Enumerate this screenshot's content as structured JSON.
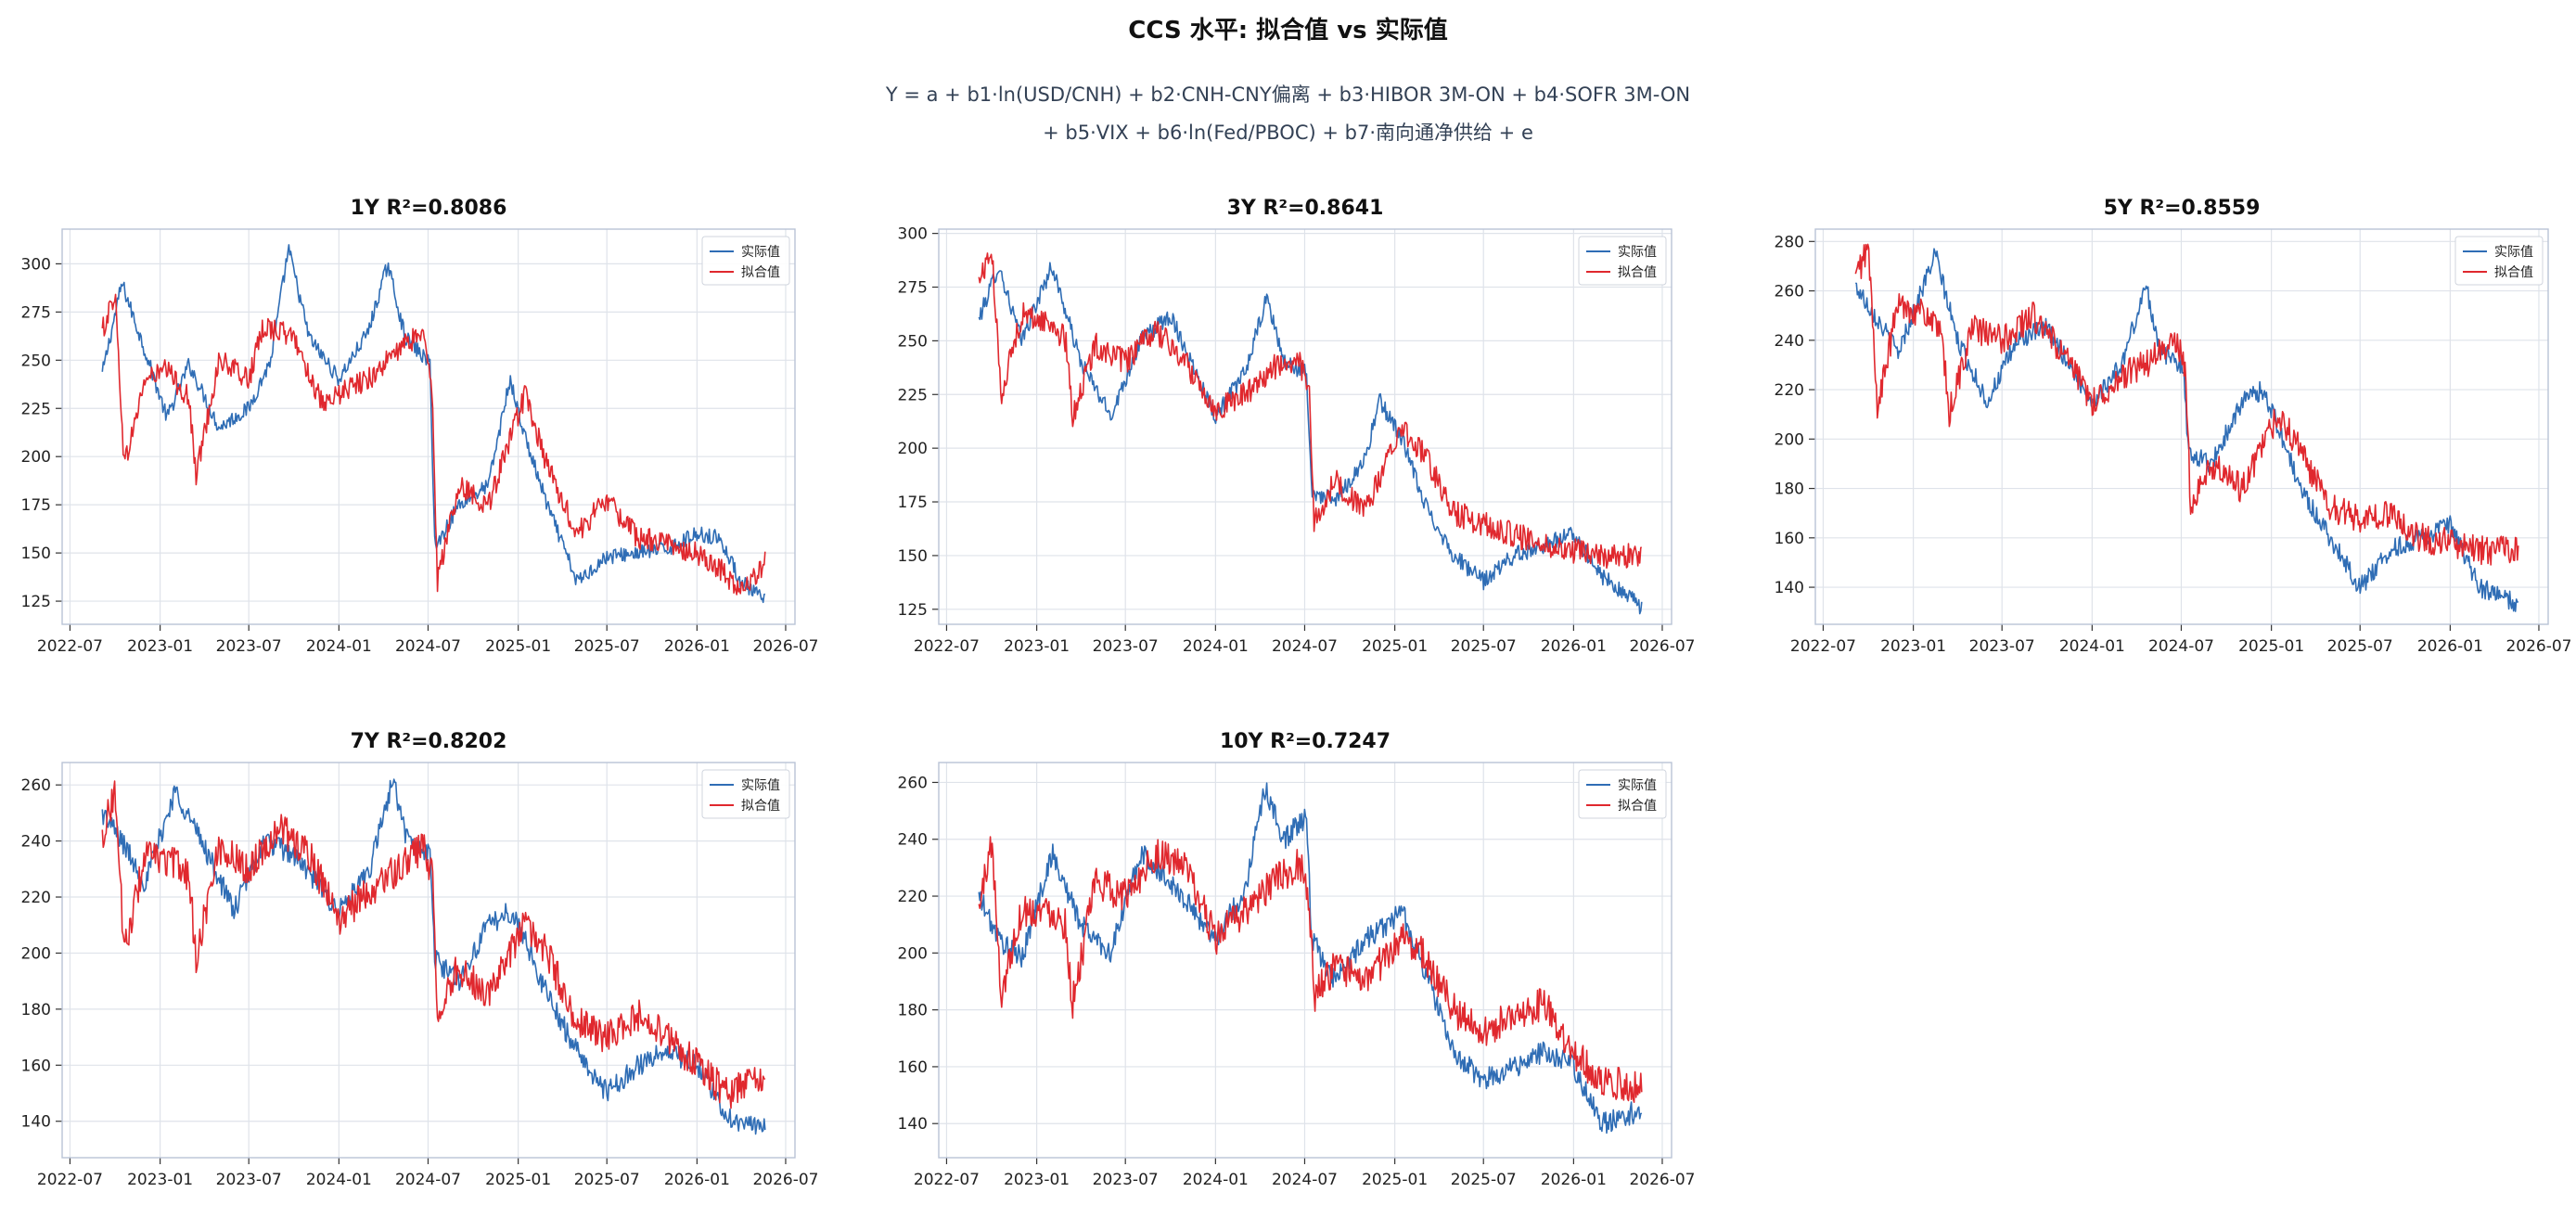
{
  "title": "CCS 水平: 拟合值 vs 实际值",
  "formula_line1": "Y = a + b1·ln(USD/CNH) + b2·CNH-CNY偏离 + b3·HIBOR 3M-ON + b4·SOFR 3M-ON",
  "formula_line2": "+ b5·VIX + b6·ln(Fed/PBOC) + b7·南向通净供给 + e",
  "colors": {
    "actual": "#2f6db5",
    "fitted": "#e0282e",
    "grid": "#dfe3ea",
    "frame": "#b9c3d6"
  },
  "chart_data": [
    {
      "type": "line",
      "title": "1Y  R²=0.8086",
      "xticks": [
        "2022-07",
        "2023-01",
        "2023-07",
        "2024-01",
        "2024-07",
        "2025-01",
        "2025-07",
        "2026-01",
        "2026-07"
      ],
      "xlim": [
        "2022-06-15",
        "2026-07-20"
      ],
      "yticks": [
        125,
        150,
        175,
        200,
        225,
        250,
        275,
        300
      ],
      "ylim": [
        113,
        318
      ],
      "legend": "top-right",
      "grid": true,
      "series": [
        {
          "name": "实际值",
          "color": "#2f6db5",
          "x": [
            "2022-09-05",
            "2022-10-15",
            "2022-12-01",
            "2023-01-15",
            "2023-03-01",
            "2023-05-01",
            "2023-07-01",
            "2023-08-15",
            "2023-09-20",
            "2023-11-01",
            "2024-01-01",
            "2024-03-01",
            "2024-04-10",
            "2024-05-15",
            "2024-07-05",
            "2024-07-15",
            "2024-09-01",
            "2024-11-01",
            "2024-12-15",
            "2025-01-15",
            "2025-03-01",
            "2025-05-01",
            "2025-07-01",
            "2025-09-01",
            "2025-11-01",
            "2026-01-01",
            "2026-02-15",
            "2026-04-01",
            "2026-05-20"
          ],
          "y": [
            243,
            290,
            255,
            220,
            248,
            215,
            225,
            250,
            308,
            262,
            240,
            265,
            300,
            262,
            248,
            152,
            175,
            185,
            240,
            210,
            175,
            135,
            148,
            150,
            152,
            160,
            158,
            135,
            125
          ]
        },
        {
          "name": "拟合值",
          "color": "#e0282e",
          "x": [
            "2022-09-05",
            "2022-10-01",
            "2022-10-20",
            "2022-12-01",
            "2023-01-15",
            "2023-03-01",
            "2023-03-15",
            "2023-05-01",
            "2023-07-01",
            "2023-08-01",
            "2023-10-01",
            "2023-12-01",
            "2024-01-15",
            "2024-03-01",
            "2024-05-01",
            "2024-06-20",
            "2024-07-10",
            "2024-07-20",
            "2024-09-01",
            "2024-11-01",
            "2025-01-15",
            "2025-03-01",
            "2025-05-01",
            "2025-07-01",
            "2025-09-01",
            "2025-11-01",
            "2026-01-01",
            "2026-02-15",
            "2026-04-01",
            "2026-05-20"
          ],
          "y": [
            265,
            285,
            195,
            240,
            245,
            230,
            190,
            250,
            240,
            268,
            262,
            225,
            235,
            240,
            255,
            265,
            232,
            135,
            185,
            175,
            232,
            195,
            160,
            178,
            158,
            155,
            150,
            142,
            130,
            145
          ]
        }
      ]
    },
    {
      "type": "line",
      "title": "3Y  R²=0.8641",
      "xticks": [
        "2022-07",
        "2023-01",
        "2023-07",
        "2024-01",
        "2024-07",
        "2025-01",
        "2025-07",
        "2026-01",
        "2026-07"
      ],
      "xlim": [
        "2022-06-15",
        "2026-07-20"
      ],
      "yticks": [
        125,
        150,
        175,
        200,
        225,
        250,
        275,
        300
      ],
      "ylim": [
        118,
        302
      ],
      "legend": "top-right",
      "grid": true,
      "series": [
        {
          "name": "实际值",
          "color": "#2f6db5",
          "x": [
            "2022-09-05",
            "2022-10-15",
            "2022-12-01",
            "2023-02-01",
            "2023-04-01",
            "2023-06-01",
            "2023-08-01",
            "2023-10-01",
            "2024-01-01",
            "2024-03-01",
            "2024-04-15",
            "2024-05-20",
            "2024-07-05",
            "2024-07-15",
            "2024-09-01",
            "2024-11-01",
            "2024-12-01",
            "2025-01-15",
            "2025-03-01",
            "2025-05-01",
            "2025-07-01",
            "2025-09-01",
            "2025-11-01",
            "2026-01-01",
            "2026-03-01",
            "2026-05-20"
          ],
          "y": [
            260,
            285,
            250,
            285,
            240,
            215,
            250,
            262,
            215,
            235,
            270,
            240,
            235,
            180,
            175,
            195,
            222,
            205,
            175,
            150,
            138,
            150,
            155,
            160,
            140,
            126
          ]
        },
        {
          "name": "拟合值",
          "color": "#e0282e",
          "x": [
            "2022-09-05",
            "2022-10-01",
            "2022-10-20",
            "2022-12-01",
            "2023-02-01",
            "2023-03-01",
            "2023-03-15",
            "2023-05-01",
            "2023-07-01",
            "2023-09-01",
            "2023-11-01",
            "2024-01-01",
            "2024-03-01",
            "2024-05-01",
            "2024-06-20",
            "2024-07-10",
            "2024-07-20",
            "2024-09-01",
            "2024-11-01",
            "2025-01-15",
            "2025-03-01",
            "2025-05-01",
            "2025-07-01",
            "2025-09-01",
            "2025-11-01",
            "2026-01-01",
            "2026-03-01",
            "2026-05-20"
          ],
          "y": [
            278,
            292,
            225,
            262,
            258,
            250,
            215,
            248,
            240,
            255,
            240,
            218,
            225,
            238,
            240,
            228,
            165,
            185,
            170,
            210,
            198,
            170,
            165,
            160,
            155,
            152,
            150,
            150
          ]
        }
      ]
    },
    {
      "type": "line",
      "title": "5Y  R²=0.8559",
      "xticks": [
        "2022-07",
        "2023-01",
        "2023-07",
        "2024-01",
        "2024-07",
        "2025-01",
        "2025-07",
        "2026-01",
        "2026-07"
      ],
      "xlim": [
        "2022-06-15",
        "2026-07-20"
      ],
      "yticks": [
        140,
        160,
        180,
        200,
        220,
        240,
        260,
        280
      ],
      "ylim": [
        125,
        285
      ],
      "legend": "top-right",
      "grid": true,
      "series": [
        {
          "name": "实际值",
          "color": "#2f6db5",
          "x": [
            "2022-09-05",
            "2022-10-15",
            "2022-12-01",
            "2023-02-15",
            "2023-04-01",
            "2023-06-01",
            "2023-08-01",
            "2023-10-01",
            "2024-01-01",
            "2024-03-01",
            "2024-04-20",
            "2024-05-20",
            "2024-07-05",
            "2024-07-15",
            "2024-09-01",
            "2024-11-01",
            "2024-12-15",
            "2025-01-15",
            "2025-03-01",
            "2025-05-01",
            "2025-07-01",
            "2025-09-01",
            "2025-11-01",
            "2026-01-01",
            "2026-03-01",
            "2026-05-20"
          ],
          "y": [
            262,
            250,
            235,
            275,
            240,
            215,
            240,
            245,
            215,
            230,
            262,
            235,
            230,
            195,
            190,
            215,
            220,
            205,
            180,
            160,
            140,
            155,
            160,
            165,
            140,
            133
          ]
        },
        {
          "name": "拟合值",
          "color": "#e0282e",
          "x": [
            "2022-09-05",
            "2022-10-01",
            "2022-10-20",
            "2022-12-01",
            "2023-02-01",
            "2023-03-01",
            "2023-03-15",
            "2023-05-01",
            "2023-07-01",
            "2023-09-01",
            "2023-11-01",
            "2024-01-01",
            "2024-03-01",
            "2024-05-01",
            "2024-06-20",
            "2024-07-10",
            "2024-07-20",
            "2024-09-01",
            "2024-11-01",
            "2025-01-15",
            "2025-03-01",
            "2025-05-01",
            "2025-07-01",
            "2025-09-01",
            "2025-11-01",
            "2026-01-01",
            "2026-03-01",
            "2026-05-20"
          ],
          "y": [
            265,
            278,
            212,
            255,
            250,
            240,
            210,
            245,
            240,
            250,
            235,
            215,
            225,
            232,
            240,
            228,
            172,
            190,
            180,
            210,
            195,
            172,
            168,
            170,
            160,
            158,
            155,
            155
          ]
        }
      ]
    },
    {
      "type": "line",
      "title": "7Y  R²=0.8202",
      "xticks": [
        "2022-07",
        "2023-01",
        "2023-07",
        "2024-01",
        "2024-07",
        "2025-01",
        "2025-07",
        "2026-01",
        "2026-07"
      ],
      "xlim": [
        "2022-06-15",
        "2026-07-20"
      ],
      "yticks": [
        140,
        160,
        180,
        200,
        220,
        240,
        260
      ],
      "ylim": [
        127,
        268
      ],
      "legend": "top-right",
      "grid": true,
      "series": [
        {
          "name": "实际值",
          "color": "#2f6db5",
          "x": [
            "2022-09-05",
            "2022-10-15",
            "2022-12-01",
            "2023-02-01",
            "2023-04-01",
            "2023-06-01",
            "2023-08-01",
            "2023-10-01",
            "2024-01-01",
            "2024-03-01",
            "2024-04-20",
            "2024-05-20",
            "2024-07-05",
            "2024-07-15",
            "2024-09-01",
            "2024-11-01",
            "2024-12-15",
            "2025-01-15",
            "2025-03-01",
            "2025-05-01",
            "2025-07-01",
            "2025-09-01",
            "2025-11-01",
            "2026-01-01",
            "2026-03-01",
            "2026-05-20"
          ],
          "y": [
            250,
            240,
            225,
            258,
            238,
            215,
            240,
            235,
            215,
            228,
            262,
            240,
            235,
            198,
            190,
            210,
            215,
            205,
            185,
            165,
            150,
            160,
            165,
            160,
            142,
            137
          ]
        },
        {
          "name": "拟合值",
          "color": "#e0282e",
          "x": [
            "2022-09-05",
            "2022-10-01",
            "2022-10-20",
            "2022-12-01",
            "2023-02-01",
            "2023-03-01",
            "2023-03-15",
            "2023-05-01",
            "2023-07-01",
            "2023-09-01",
            "2023-11-01",
            "2024-01-01",
            "2024-03-01",
            "2024-05-01",
            "2024-06-20",
            "2024-07-10",
            "2024-07-20",
            "2024-09-01",
            "2024-11-01",
            "2025-01-15",
            "2025-03-01",
            "2025-05-01",
            "2025-07-01",
            "2025-09-01",
            "2025-11-01",
            "2026-01-01",
            "2026-03-01",
            "2026-05-20"
          ],
          "y": [
            242,
            258,
            200,
            235,
            232,
            228,
            198,
            238,
            230,
            245,
            235,
            212,
            222,
            230,
            238,
            228,
            178,
            195,
            185,
            210,
            200,
            175,
            170,
            178,
            170,
            160,
            150,
            155
          ]
        }
      ]
    },
    {
      "type": "line",
      "title": "10Y  R²=0.7247",
      "xticks": [
        "2022-07",
        "2023-01",
        "2023-07",
        "2024-01",
        "2024-07",
        "2025-01",
        "2025-07",
        "2026-01",
        "2026-07"
      ],
      "xlim": [
        "2022-06-15",
        "2026-07-20"
      ],
      "yticks": [
        140,
        160,
        180,
        200,
        220,
        240,
        260
      ],
      "ylim": [
        128,
        267
      ],
      "legend": "top-right",
      "grid": true,
      "series": [
        {
          "name": "实际值",
          "color": "#2f6db5",
          "x": [
            "2022-09-05",
            "2022-10-15",
            "2022-12-01",
            "2023-02-01",
            "2023-04-01",
            "2023-06-01",
            "2023-08-01",
            "2023-10-01",
            "2024-01-01",
            "2024-03-01",
            "2024-04-10",
            "2024-05-20",
            "2024-07-05",
            "2024-07-15",
            "2024-09-01",
            "2024-11-01",
            "2024-12-15",
            "2025-01-15",
            "2025-03-01",
            "2025-05-01",
            "2025-07-01",
            "2025-09-01",
            "2025-11-01",
            "2026-01-01",
            "2026-03-01",
            "2026-05-20"
          ],
          "y": [
            220,
            205,
            198,
            235,
            210,
            200,
            235,
            225,
            205,
            222,
            258,
            240,
            248,
            205,
            190,
            205,
            210,
            215,
            195,
            165,
            155,
            160,
            165,
            160,
            140,
            145
          ]
        },
        {
          "name": "拟合值",
          "color": "#e0282e",
          "x": [
            "2022-09-05",
            "2022-10-01",
            "2022-10-20",
            "2022-12-01",
            "2023-02-01",
            "2023-03-01",
            "2023-03-15",
            "2023-05-01",
            "2023-07-01",
            "2023-09-01",
            "2023-11-01",
            "2024-01-01",
            "2024-03-01",
            "2024-05-01",
            "2024-06-20",
            "2024-07-10",
            "2024-07-20",
            "2024-09-01",
            "2024-11-01",
            "2025-01-15",
            "2025-03-01",
            "2025-05-01",
            "2025-07-01",
            "2025-09-01",
            "2025-11-01",
            "2026-01-01",
            "2026-03-01",
            "2026-05-20"
          ],
          "y": [
            215,
            240,
            185,
            215,
            215,
            210,
            182,
            225,
            220,
            235,
            230,
            205,
            215,
            225,
            232,
            220,
            185,
            195,
            190,
            205,
            200,
            180,
            172,
            178,
            182,
            165,
            155,
            153
          ]
        }
      ]
    }
  ]
}
